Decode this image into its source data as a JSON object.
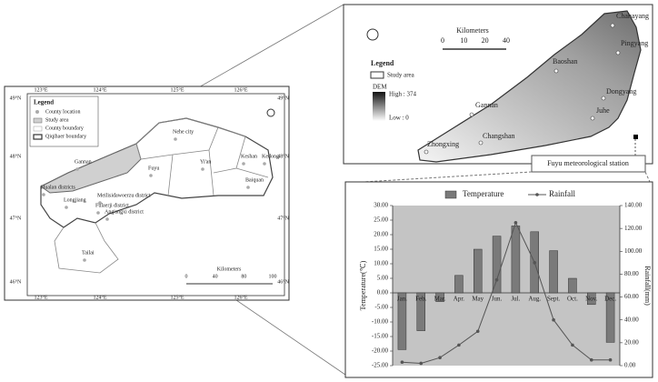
{
  "left_map": {
    "legend": {
      "title": "Legend",
      "items": [
        "County location",
        "Study area",
        "County boundary",
        "Qiqihaer boundary"
      ]
    },
    "places": [
      "Nehe city",
      "Gannan",
      "Fuyu",
      "Yi'an",
      "Keshan",
      "Kedong",
      "Baiquan",
      "Hualan districts",
      "Longjiang",
      "Meilisidawoerzu district",
      "Fulaerji district",
      "Ang'angxi district",
      "Tailai"
    ],
    "lon_ticks": [
      "123°E",
      "124°E",
      "125°E",
      "126°E"
    ],
    "lat_ticks": [
      "49°N",
      "48°N",
      "47°N",
      "46°N"
    ],
    "scale": {
      "title": "Kilometers",
      "ticks": [
        "0",
        "40",
        "80",
        "100"
      ]
    }
  },
  "right_map": {
    "scale": {
      "title": "Kilometers",
      "ticks": [
        "0",
        "10",
        "20",
        "40"
      ]
    },
    "legend": {
      "title": "Legend",
      "study_area": "Study area",
      "dem": "DEM",
      "high": "High : 374",
      "low": "Low : 0"
    },
    "places": [
      "Chahayang",
      "Pingyang",
      "Baoshan",
      "Dongyang",
      "Juhe",
      "Gannan",
      "Changshan",
      "Zhongxing"
    ],
    "station": "Fuyu meteorological station"
  },
  "chart_data": {
    "type": "bar-line",
    "categories": [
      "Jan.",
      "Feb.",
      "Mar.",
      "Apr.",
      "May",
      "Jun.",
      "Jul.",
      "Aug.",
      "Sept.",
      "Oct.",
      "Nov.",
      "Dec."
    ],
    "series": [
      {
        "name": "Temperature",
        "type": "bar",
        "color": "#7a7a7a",
        "values": [
          -19.5,
          -13,
          -3,
          6,
          15,
          19.5,
          23,
          21,
          14.5,
          5,
          -4,
          -17
        ]
      },
      {
        "name": "Rainfall",
        "type": "line",
        "axis": "y2",
        "color": "#555555",
        "values": [
          3,
          2,
          7,
          18,
          30,
          75,
          125,
          90,
          40,
          18,
          5,
          5
        ]
      }
    ],
    "ylabel": "Temperature(℃)",
    "y2label": "Rainfall(mm)",
    "ylim": [
      -25,
      30
    ],
    "yticks": [
      {
        "value": 30,
        "label": "30.00"
      },
      {
        "value": 25,
        "label": "25.00"
      },
      {
        "value": 20,
        "label": "20.00"
      },
      {
        "value": 15,
        "label": "15.00"
      },
      {
        "value": 10,
        "label": "10.00"
      },
      {
        "value": 5,
        "label": "5.00"
      },
      {
        "value": 0,
        "label": "0.00"
      },
      {
        "value": -5,
        "label": "-5.00"
      },
      {
        "value": -10,
        "label": "-10.00"
      },
      {
        "value": -15,
        "label": "-15.00"
      },
      {
        "value": -20,
        "label": "-20.00"
      },
      {
        "value": -25,
        "label": "-25.00"
      }
    ],
    "y2lim": [
      0,
      140
    ],
    "y2ticks": [
      {
        "value": 140,
        "label": "140.00"
      },
      {
        "value": 120,
        "label": "120.00"
      },
      {
        "value": 100,
        "label": "100.00"
      },
      {
        "value": 80,
        "label": "80.00"
      },
      {
        "value": 60,
        "label": "60.00"
      },
      {
        "value": 40,
        "label": "40.00"
      },
      {
        "value": 20,
        "label": "20.00"
      },
      {
        "value": 0,
        "label": "0.00"
      }
    ]
  }
}
